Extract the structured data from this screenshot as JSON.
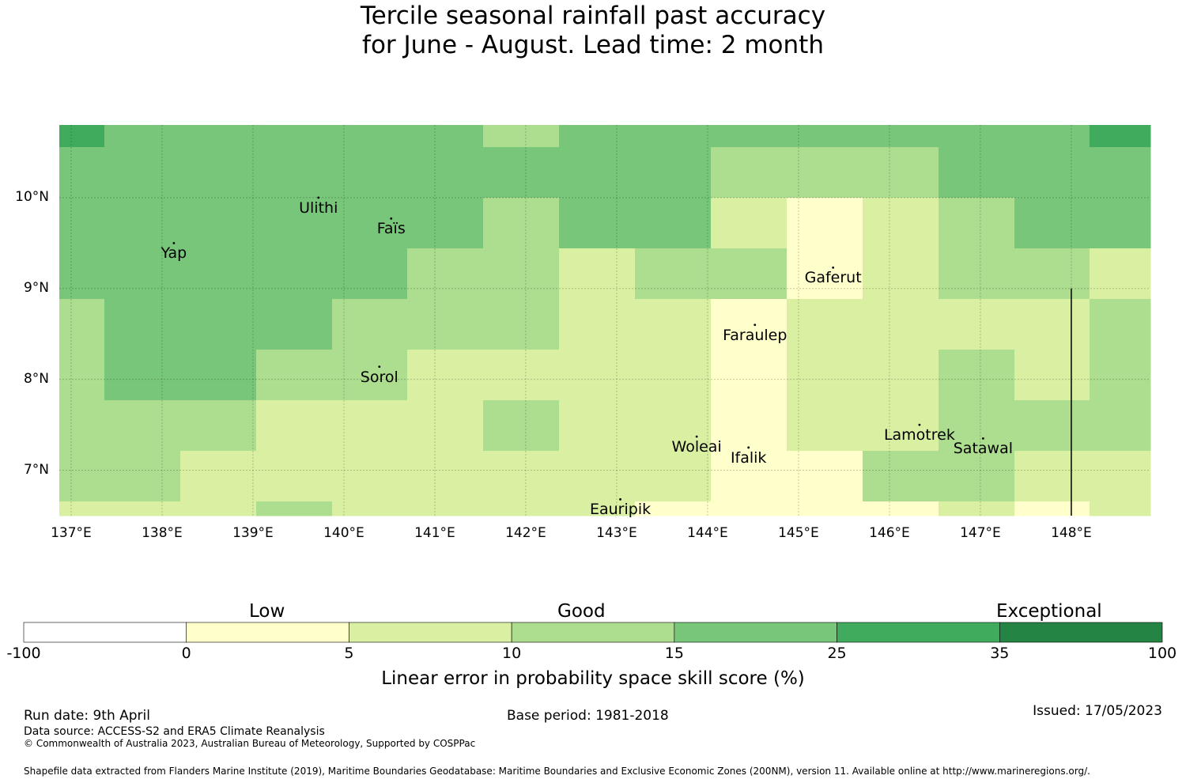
{
  "title": {
    "line1": "Tercile seasonal rainfall past accuracy",
    "line2": "for June - August. Lead time: 2 month"
  },
  "map": {
    "lon_ticks": [
      "137°E",
      "138°E",
      "139°E",
      "140°E",
      "141°E",
      "142°E",
      "143°E",
      "144°E",
      "145°E",
      "146°E",
      "147°E",
      "148°E"
    ],
    "lat_ticks": [
      "10°N",
      "9°N",
      "8°N",
      "7°N"
    ],
    "lon_values": [
      137,
      138,
      139,
      140,
      141,
      142,
      143,
      144,
      145,
      146,
      147,
      148
    ],
    "lat_values": [
      10,
      9,
      8,
      7
    ],
    "lon_range": [
      136.87,
      148.87
    ],
    "lat_range": [
      6.5,
      10.8
    ],
    "grid": true,
    "cell_colors": [
      [
        "#41ab5d",
        "#78c679",
        "#78c679",
        "#78c679",
        "#78c679",
        "#78c679",
        "#addd8e",
        "#78c679",
        "#78c679",
        "#78c679",
        "#78c679",
        "#78c679",
        "#78c679",
        "#78c679",
        "#41ab5d"
      ],
      [
        "#78c679",
        "#78c679",
        "#78c679",
        "#78c679",
        "#78c679",
        "#78c679",
        "#78c679",
        "#78c679",
        "#78c679",
        "#addd8e",
        "#addd8e",
        "#addd8e",
        "#78c679",
        "#78c679",
        "#78c679"
      ],
      [
        "#78c679",
        "#78c679",
        "#78c679",
        "#78c679",
        "#78c679",
        "#78c679",
        "#addd8e",
        "#78c679",
        "#78c679",
        "#d9f0a3",
        "#ffffcc",
        "#d9f0a3",
        "#addd8e",
        "#78c679",
        "#78c679"
      ],
      [
        "#78c679",
        "#78c679",
        "#78c679",
        "#78c679",
        "#78c679",
        "#addd8e",
        "#addd8e",
        "#d9f0a3",
        "#addd8e",
        "#addd8e",
        "#ffffcc",
        "#d9f0a3",
        "#addd8e",
        "#addd8e",
        "#d9f0a3"
      ],
      [
        "#addd8e",
        "#78c679",
        "#78c679",
        "#78c679",
        "#addd8e",
        "#addd8e",
        "#addd8e",
        "#d9f0a3",
        "#d9f0a3",
        "#ffffcc",
        "#d9f0a3",
        "#d9f0a3",
        "#d9f0a3",
        "#d9f0a3",
        "#addd8e"
      ],
      [
        "#addd8e",
        "#78c679",
        "#78c679",
        "#addd8e",
        "#addd8e",
        "#d9f0a3",
        "#d9f0a3",
        "#d9f0a3",
        "#d9f0a3",
        "#ffffcc",
        "#d9f0a3",
        "#d9f0a3",
        "#addd8e",
        "#d9f0a3",
        "#addd8e"
      ],
      [
        "#addd8e",
        "#addd8e",
        "#addd8e",
        "#d9f0a3",
        "#d9f0a3",
        "#d9f0a3",
        "#addd8e",
        "#d9f0a3",
        "#d9f0a3",
        "#ffffcc",
        "#d9f0a3",
        "#d9f0a3",
        "#addd8e",
        "#addd8e",
        "#addd8e"
      ],
      [
        "#addd8e",
        "#addd8e",
        "#d9f0a3",
        "#d9f0a3",
        "#d9f0a3",
        "#d9f0a3",
        "#d9f0a3",
        "#d9f0a3",
        "#d9f0a3",
        "#ffffcc",
        "#ffffcc",
        "#addd8e",
        "#addd8e",
        "#d9f0a3",
        "#d9f0a3"
      ],
      [
        "#d9f0a3",
        "#d9f0a3",
        "#d9f0a3",
        "#addd8e",
        "#d9f0a3",
        "#d9f0a3",
        "#d9f0a3",
        "#d9f0a3",
        "#ffffcc",
        "#ffffcc",
        "#ffffcc",
        "#ffffcc",
        "#d9f0a3",
        "#ffffcc",
        "#d9f0a3"
      ]
    ],
    "islands": [
      {
        "name": "Yap",
        "lon": 138.13,
        "lat": 9.5
      },
      {
        "name": "Ulithi",
        "lon": 139.72,
        "lat": 10.0
      },
      {
        "name": "Faïs",
        "lon": 140.52,
        "lat": 9.77
      },
      {
        "name": "Gaferut",
        "lon": 145.38,
        "lat": 9.23
      },
      {
        "name": "Faraulep",
        "lon": 144.52,
        "lat": 8.6
      },
      {
        "name": "Sorol",
        "lon": 140.39,
        "lat": 8.14
      },
      {
        "name": "Woleai",
        "lon": 143.88,
        "lat": 7.37
      },
      {
        "name": "Ifalik",
        "lon": 144.45,
        "lat": 7.25
      },
      {
        "name": "Lamotrek",
        "lon": 146.33,
        "lat": 7.5
      },
      {
        "name": "Satawal",
        "lon": 147.03,
        "lat": 7.35
      },
      {
        "name": "Eauripik",
        "lon": 143.04,
        "lat": 6.68
      }
    ],
    "boundary_line": {
      "lon": 148.0,
      "lat_from": 6.5,
      "lat_to": 9.0
    }
  },
  "legend": {
    "categories": [
      "Low",
      "Good",
      "Exceptional"
    ],
    "colors": [
      "#ffffff",
      "#ffffcc",
      "#d9f0a3",
      "#addd8e",
      "#78c679",
      "#41ab5d",
      "#238443"
    ],
    "ticks": [
      "-100",
      "0",
      "5",
      "10",
      "15",
      "25",
      "35",
      "100"
    ],
    "label": "Linear error in probability space skill score (%)"
  },
  "footer": {
    "run_date": "Run date: 9th April",
    "base_period": "Base period: 1981-2018",
    "issued": "Issued: 17/05/2023",
    "data_source": "Data source: ACCESS-S2 and ERA5 Climate Reanalysis",
    "copyright": "© Commonwealth of Australia 2023, Australian Bureau of Meteorology, Supported by COSPPac",
    "shapefile": "Shapefile data extracted from Flanders Marine Institute (2019), Maritime Boundaries Geodatabase: Maritime Boundaries and Exclusive Economic Zones (200NM), version 11. Available online at http://www.marineregions.org/."
  }
}
